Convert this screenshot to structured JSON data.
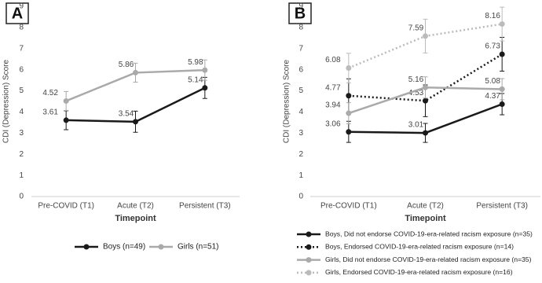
{
  "chart_data": [
    {
      "type": "line",
      "panel_label": "A",
      "x_label": "Timepoint",
      "y_label": "CDI (Depression) Score",
      "categories": [
        "Pre-COVID (T1)",
        "Acute (T2)",
        "Persistent (T3)"
      ],
      "ylim": [
        0,
        9
      ],
      "yticks": [
        0,
        1,
        2,
        3,
        4,
        5,
        6,
        7,
        8,
        9
      ],
      "legend": "bottom",
      "series": [
        {
          "name": "Boys (n=49)",
          "color": "#1a1a1a",
          "dash": false,
          "values": [
            3.61,
            3.54,
            5.14
          ],
          "errors": [
            0.45,
            0.5,
            0.5
          ]
        },
        {
          "name": "Girls (n=51)",
          "color": "#aaaaaa",
          "dash": false,
          "values": [
            4.52,
            5.86,
            5.98
          ],
          "errors": [
            0.45,
            0.45,
            0.48
          ]
        }
      ]
    },
    {
      "type": "line",
      "panel_label": "B",
      "x_label": "Timepoint",
      "y_label": "CDI (Depression) Score",
      "categories": [
        "Pre-COVID (T1)",
        "Acute (T2)",
        "Persistent (T3)"
      ],
      "ylim": [
        0,
        9
      ],
      "yticks": [
        0,
        1,
        2,
        3,
        4,
        5,
        6,
        7,
        8,
        9
      ],
      "legend": "bottom",
      "series": [
        {
          "name": "Boys, Did not endorse COVID-19-era-related racism exposure (n=35)",
          "color": "#1a1a1a",
          "dash": false,
          "values": [
            3.06,
            3.01,
            4.37
          ],
          "errors": [
            0.5,
            0.45,
            0.5
          ]
        },
        {
          "name": "Boys, Endorsed COVID-19-era-related racism exposure (n=14)",
          "color": "#1a1a1a",
          "dash": true,
          "values": [
            4.77,
            4.53,
            6.73
          ],
          "errors": [
            0.8,
            0.75,
            0.8
          ]
        },
        {
          "name": "Girls, Did not endorse COVID-19-era-related racism exposure (n=35)",
          "color": "#aaaaaa",
          "dash": false,
          "values": [
            3.94,
            5.16,
            5.08
          ],
          "errors": [
            0.5,
            0.5,
            0.5
          ]
        },
        {
          "name": "Girls, Endorsed COVID-19-era-related racism exposure (n=16)",
          "color": "#bbbbbb",
          "dash": true,
          "values": [
            6.08,
            7.59,
            8.16
          ],
          "errors": [
            0.7,
            0.8,
            0.8
          ]
        }
      ]
    }
  ]
}
